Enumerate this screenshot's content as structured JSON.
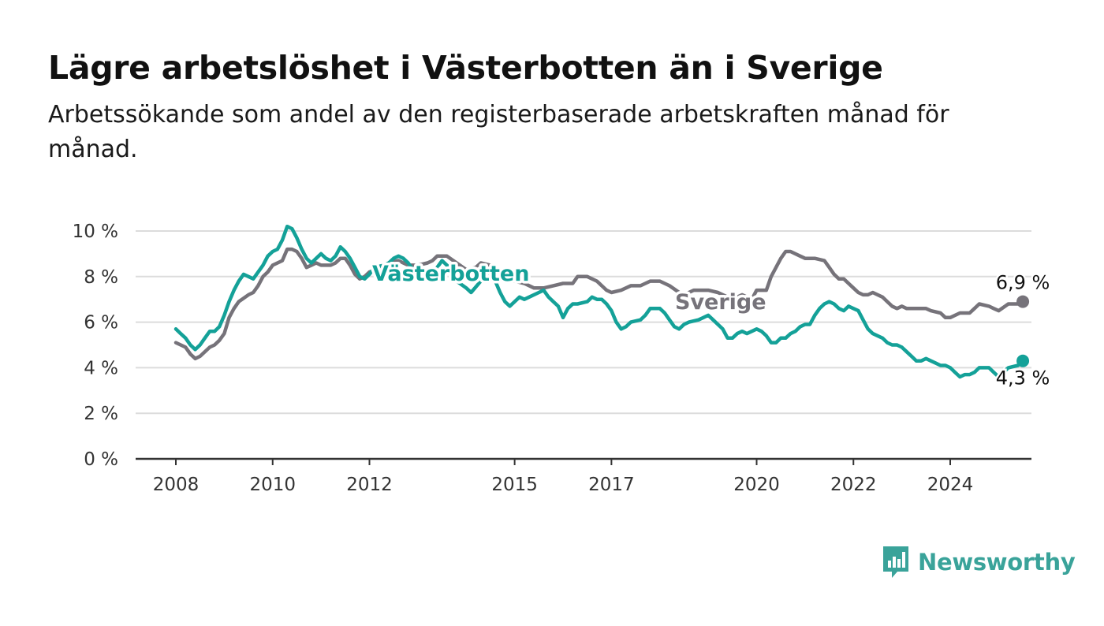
{
  "header": {
    "title": "Lägre arbetslöshet i Västerbotten än i Sverige",
    "subtitle": "Arbetssökande som andel av den registerbaserade arbetskraften månad för månad."
  },
  "brand": {
    "name": "Newsworthy",
    "icon": "newsworthy-logo-icon",
    "color": "#3aa39a"
  },
  "chart_data": {
    "type": "line",
    "title": "Lägre arbetslöshet i Västerbotten än i Sverige",
    "subtitle": "Arbetssökande som andel av den registerbaserade arbetskraften månad för månad.",
    "xlabel": "",
    "ylabel": "",
    "ylim": [
      0,
      10
    ],
    "xlim": [
      2007.5,
      2026.2
    ],
    "grid": true,
    "legend": "none",
    "y_ticks": [
      {
        "value": 0,
        "label": "0 %"
      },
      {
        "value": 2,
        "label": "2 %"
      },
      {
        "value": 4,
        "label": "4 %"
      },
      {
        "value": 6,
        "label": "6 %"
      },
      {
        "value": 8,
        "label": "8 %"
      },
      {
        "value": 10,
        "label": "10 %"
      }
    ],
    "x_ticks": [
      {
        "value": 2008,
        "label": "2008"
      },
      {
        "value": 2010,
        "label": "2010"
      },
      {
        "value": 2012,
        "label": "2012"
      },
      {
        "value": 2015,
        "label": "2015"
      },
      {
        "value": 2017,
        "label": "2017"
      },
      {
        "value": 2020,
        "label": "2020"
      },
      {
        "value": 2022,
        "label": "2022"
      },
      {
        "value": 2024,
        "label": "2024"
      }
    ],
    "series": [
      {
        "name": "Sverige",
        "color": "#76737a",
        "end_label": "6,9 %",
        "points": [
          [
            2008.0,
            5.1
          ],
          [
            2008.2,
            4.9
          ],
          [
            2008.3,
            4.6
          ],
          [
            2008.4,
            4.4
          ],
          [
            2008.5,
            4.5
          ],
          [
            2008.7,
            4.9
          ],
          [
            2008.8,
            5.0
          ],
          [
            2008.9,
            5.2
          ],
          [
            2009.0,
            5.5
          ],
          [
            2009.1,
            6.2
          ],
          [
            2009.2,
            6.6
          ],
          [
            2009.3,
            6.9
          ],
          [
            2009.5,
            7.2
          ],
          [
            2009.6,
            7.3
          ],
          [
            2009.7,
            7.6
          ],
          [
            2009.8,
            8.0
          ],
          [
            2009.9,
            8.2
          ],
          [
            2010.0,
            8.5
          ],
          [
            2010.2,
            8.7
          ],
          [
            2010.3,
            9.2
          ],
          [
            2010.4,
            9.2
          ],
          [
            2010.5,
            9.1
          ],
          [
            2010.6,
            8.8
          ],
          [
            2010.7,
            8.4
          ],
          [
            2010.8,
            8.5
          ],
          [
            2010.9,
            8.6
          ],
          [
            2011.0,
            8.5
          ],
          [
            2011.2,
            8.5
          ],
          [
            2011.3,
            8.6
          ],
          [
            2011.4,
            8.8
          ],
          [
            2011.5,
            8.8
          ],
          [
            2011.6,
            8.5
          ],
          [
            2011.7,
            8.1
          ],
          [
            2011.8,
            7.9
          ],
          [
            2011.9,
            8.0
          ],
          [
            2012.0,
            8.2
          ],
          [
            2012.2,
            8.3
          ],
          [
            2012.4,
            8.6
          ],
          [
            2012.6,
            8.7
          ],
          [
            2012.8,
            8.5
          ],
          [
            2013.0,
            8.5
          ],
          [
            2013.2,
            8.6
          ],
          [
            2013.3,
            8.7
          ],
          [
            2013.4,
            8.9
          ],
          [
            2013.6,
            8.9
          ],
          [
            2013.8,
            8.6
          ],
          [
            2014.0,
            8.3
          ],
          [
            2014.2,
            8.4
          ],
          [
            2014.3,
            8.6
          ],
          [
            2014.5,
            8.5
          ],
          [
            2014.7,
            8.2
          ],
          [
            2014.8,
            8.0
          ],
          [
            2015.0,
            7.8
          ],
          [
            2015.2,
            7.7
          ],
          [
            2015.4,
            7.5
          ],
          [
            2015.6,
            7.5
          ],
          [
            2015.8,
            7.6
          ],
          [
            2016.0,
            7.7
          ],
          [
            2016.2,
            7.7
          ],
          [
            2016.3,
            8.0
          ],
          [
            2016.5,
            8.0
          ],
          [
            2016.7,
            7.8
          ],
          [
            2016.9,
            7.4
          ],
          [
            2017.0,
            7.3
          ],
          [
            2017.2,
            7.4
          ],
          [
            2017.4,
            7.6
          ],
          [
            2017.6,
            7.6
          ],
          [
            2017.8,
            7.8
          ],
          [
            2018.0,
            7.8
          ],
          [
            2018.2,
            7.6
          ],
          [
            2018.4,
            7.3
          ],
          [
            2018.5,
            7.2
          ],
          [
            2018.7,
            7.4
          ],
          [
            2018.9,
            7.4
          ],
          [
            2019.0,
            7.4
          ],
          [
            2019.2,
            7.3
          ],
          [
            2019.4,
            7.1
          ],
          [
            2019.5,
            7.0
          ],
          [
            2019.7,
            7.2
          ],
          [
            2019.9,
            7.0
          ],
          [
            2020.0,
            7.4
          ],
          [
            2020.2,
            7.4
          ],
          [
            2020.3,
            8.0
          ],
          [
            2020.5,
            8.8
          ],
          [
            2020.6,
            9.1
          ],
          [
            2020.7,
            9.1
          ],
          [
            2020.9,
            8.9
          ],
          [
            2021.0,
            8.8
          ],
          [
            2021.1,
            8.8
          ],
          [
            2021.2,
            8.8
          ],
          [
            2021.4,
            8.7
          ],
          [
            2021.5,
            8.4
          ],
          [
            2021.6,
            8.1
          ],
          [
            2021.7,
            7.9
          ],
          [
            2021.8,
            7.9
          ],
          [
            2021.9,
            7.7
          ],
          [
            2022.0,
            7.5
          ],
          [
            2022.1,
            7.3
          ],
          [
            2022.2,
            7.2
          ],
          [
            2022.3,
            7.2
          ],
          [
            2022.4,
            7.3
          ],
          [
            2022.6,
            7.1
          ],
          [
            2022.7,
            6.9
          ],
          [
            2022.8,
            6.7
          ],
          [
            2022.9,
            6.6
          ],
          [
            2023.0,
            6.7
          ],
          [
            2023.1,
            6.6
          ],
          [
            2023.3,
            6.6
          ],
          [
            2023.5,
            6.6
          ],
          [
            2023.6,
            6.5
          ],
          [
            2023.8,
            6.4
          ],
          [
            2023.9,
            6.2
          ],
          [
            2024.0,
            6.2
          ],
          [
            2024.2,
            6.4
          ],
          [
            2024.4,
            6.4
          ],
          [
            2024.5,
            6.6
          ],
          [
            2024.6,
            6.8
          ],
          [
            2024.8,
            6.7
          ],
          [
            2024.9,
            6.6
          ],
          [
            2025.0,
            6.5
          ],
          [
            2025.2,
            6.8
          ],
          [
            2025.4,
            6.8
          ],
          [
            2025.5,
            6.9
          ]
        ]
      },
      {
        "name": "Västerbotten",
        "color": "#14a198",
        "end_label": "4,3 %",
        "points": [
          [
            2008.0,
            5.7
          ],
          [
            2008.1,
            5.5
          ],
          [
            2008.2,
            5.3
          ],
          [
            2008.3,
            5.0
          ],
          [
            2008.4,
            4.8
          ],
          [
            2008.5,
            5.0
          ],
          [
            2008.6,
            5.3
          ],
          [
            2008.7,
            5.6
          ],
          [
            2008.8,
            5.6
          ],
          [
            2008.9,
            5.8
          ],
          [
            2009.0,
            6.3
          ],
          [
            2009.1,
            6.9
          ],
          [
            2009.2,
            7.4
          ],
          [
            2009.3,
            7.8
          ],
          [
            2009.4,
            8.1
          ],
          [
            2009.5,
            8.0
          ],
          [
            2009.6,
            7.9
          ],
          [
            2009.8,
            8.5
          ],
          [
            2009.9,
            8.9
          ],
          [
            2010.0,
            9.1
          ],
          [
            2010.1,
            9.2
          ],
          [
            2010.2,
            9.6
          ],
          [
            2010.3,
            10.2
          ],
          [
            2010.4,
            10.1
          ],
          [
            2010.5,
            9.7
          ],
          [
            2010.6,
            9.2
          ],
          [
            2010.7,
            8.8
          ],
          [
            2010.8,
            8.6
          ],
          [
            2010.9,
            8.8
          ],
          [
            2011.0,
            9.0
          ],
          [
            2011.1,
            8.8
          ],
          [
            2011.2,
            8.7
          ],
          [
            2011.3,
            8.9
          ],
          [
            2011.4,
            9.3
          ],
          [
            2011.5,
            9.1
          ],
          [
            2011.6,
            8.8
          ],
          [
            2011.7,
            8.4
          ],
          [
            2011.8,
            8.0
          ],
          [
            2011.9,
            7.9
          ],
          [
            2012.0,
            8.1
          ],
          [
            2012.1,
            8.4
          ],
          [
            2012.3,
            8.5
          ],
          [
            2012.4,
            8.6
          ],
          [
            2012.5,
            8.8
          ],
          [
            2012.6,
            8.9
          ],
          [
            2012.7,
            8.8
          ],
          [
            2012.8,
            8.6
          ],
          [
            2012.9,
            8.3
          ],
          [
            2013.0,
            8.2
          ],
          [
            2013.1,
            8.2
          ],
          [
            2013.3,
            8.1
          ],
          [
            2013.4,
            8.4
          ],
          [
            2013.5,
            8.7
          ],
          [
            2013.6,
            8.5
          ],
          [
            2013.7,
            8.3
          ],
          [
            2013.8,
            7.8
          ],
          [
            2014.0,
            7.5
          ],
          [
            2014.1,
            7.3
          ],
          [
            2014.3,
            7.8
          ],
          [
            2014.4,
            8.1
          ],
          [
            2014.5,
            8.2
          ],
          [
            2014.6,
            7.8
          ],
          [
            2014.7,
            7.3
          ],
          [
            2014.8,
            6.9
          ],
          [
            2014.9,
            6.7
          ],
          [
            2015.0,
            6.9
          ],
          [
            2015.1,
            7.1
          ],
          [
            2015.2,
            7.0
          ],
          [
            2015.3,
            7.1
          ],
          [
            2015.5,
            7.3
          ],
          [
            2015.6,
            7.4
          ],
          [
            2015.7,
            7.1
          ],
          [
            2015.8,
            6.9
          ],
          [
            2015.9,
            6.7
          ],
          [
            2016.0,
            6.2
          ],
          [
            2016.1,
            6.6
          ],
          [
            2016.2,
            6.8
          ],
          [
            2016.3,
            6.8
          ],
          [
            2016.5,
            6.9
          ],
          [
            2016.6,
            7.1
          ],
          [
            2016.7,
            7.0
          ],
          [
            2016.8,
            7.0
          ],
          [
            2016.9,
            6.8
          ],
          [
            2017.0,
            6.5
          ],
          [
            2017.1,
            6.0
          ],
          [
            2017.2,
            5.7
          ],
          [
            2017.3,
            5.8
          ],
          [
            2017.4,
            6.0
          ],
          [
            2017.6,
            6.1
          ],
          [
            2017.7,
            6.3
          ],
          [
            2017.8,
            6.6
          ],
          [
            2018.0,
            6.6
          ],
          [
            2018.1,
            6.4
          ],
          [
            2018.2,
            6.1
          ],
          [
            2018.3,
            5.8
          ],
          [
            2018.4,
            5.7
          ],
          [
            2018.5,
            5.9
          ],
          [
            2018.6,
            6.0
          ],
          [
            2018.8,
            6.1
          ],
          [
            2018.9,
            6.2
          ],
          [
            2019.0,
            6.3
          ],
          [
            2019.1,
            6.1
          ],
          [
            2019.2,
            5.9
          ],
          [
            2019.3,
            5.7
          ],
          [
            2019.4,
            5.3
          ],
          [
            2019.5,
            5.3
          ],
          [
            2019.6,
            5.5
          ],
          [
            2019.7,
            5.6
          ],
          [
            2019.8,
            5.5
          ],
          [
            2019.9,
            5.6
          ],
          [
            2020.0,
            5.7
          ],
          [
            2020.1,
            5.6
          ],
          [
            2020.2,
            5.4
          ],
          [
            2020.3,
            5.1
          ],
          [
            2020.4,
            5.1
          ],
          [
            2020.5,
            5.3
          ],
          [
            2020.6,
            5.3
          ],
          [
            2020.7,
            5.5
          ],
          [
            2020.8,
            5.6
          ],
          [
            2020.9,
            5.8
          ],
          [
            2021.0,
            5.9
          ],
          [
            2021.1,
            5.9
          ],
          [
            2021.2,
            6.3
          ],
          [
            2021.3,
            6.6
          ],
          [
            2021.4,
            6.8
          ],
          [
            2021.5,
            6.9
          ],
          [
            2021.6,
            6.8
          ],
          [
            2021.7,
            6.6
          ],
          [
            2021.8,
            6.5
          ],
          [
            2021.9,
            6.7
          ],
          [
            2022.0,
            6.6
          ],
          [
            2022.1,
            6.5
          ],
          [
            2022.2,
            6.1
          ],
          [
            2022.3,
            5.7
          ],
          [
            2022.4,
            5.5
          ],
          [
            2022.5,
            5.4
          ],
          [
            2022.6,
            5.3
          ],
          [
            2022.7,
            5.1
          ],
          [
            2022.8,
            5.0
          ],
          [
            2022.9,
            5.0
          ],
          [
            2023.0,
            4.9
          ],
          [
            2023.1,
            4.7
          ],
          [
            2023.2,
            4.5
          ],
          [
            2023.3,
            4.3
          ],
          [
            2023.4,
            4.3
          ],
          [
            2023.5,
            4.4
          ],
          [
            2023.6,
            4.3
          ],
          [
            2023.7,
            4.2
          ],
          [
            2023.8,
            4.1
          ],
          [
            2023.9,
            4.1
          ],
          [
            2024.0,
            4.0
          ],
          [
            2024.1,
            3.8
          ],
          [
            2024.2,
            3.6
          ],
          [
            2024.3,
            3.7
          ],
          [
            2024.4,
            3.7
          ],
          [
            2024.5,
            3.8
          ],
          [
            2024.6,
            4.0
          ],
          [
            2024.7,
            4.0
          ],
          [
            2024.8,
            4.0
          ],
          [
            2024.9,
            3.8
          ],
          [
            2025.0,
            3.6
          ],
          [
            2025.1,
            3.8
          ],
          [
            2025.2,
            4.0
          ],
          [
            2025.4,
            4.1
          ],
          [
            2025.5,
            4.3
          ]
        ]
      }
    ]
  }
}
